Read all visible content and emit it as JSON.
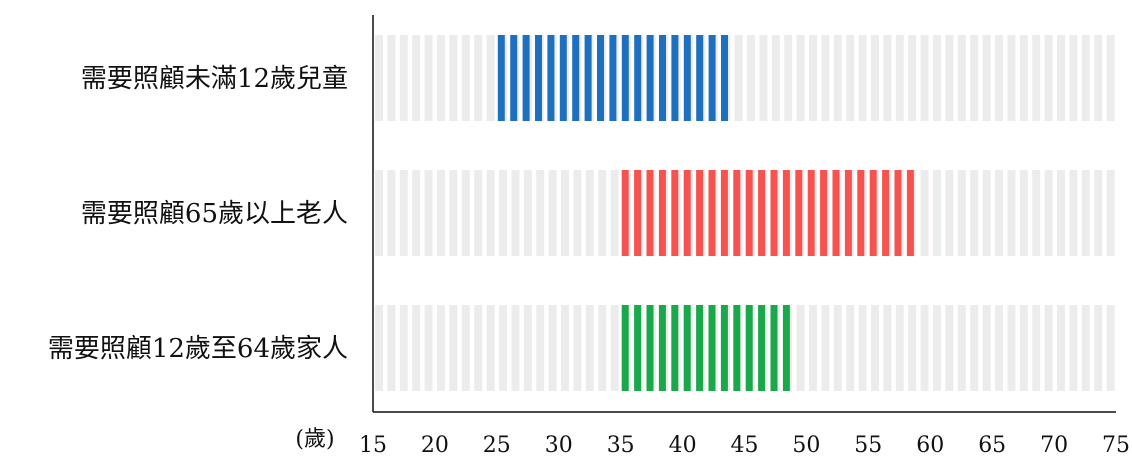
{
  "chart_data": {
    "type": "bar",
    "orientation": "horizontal",
    "style": "striped-range",
    "x_unit_label": "(歲)",
    "xlim": [
      15,
      75
    ],
    "x_ticks": [
      15,
      20,
      25,
      30,
      35,
      40,
      45,
      50,
      55,
      60,
      65,
      70,
      75
    ],
    "categories": [
      "需要照顧未滿12歲兒童",
      "需要照顧65歲以上老人",
      "需要照顧12歲至64歲家人"
    ],
    "ranges": [
      {
        "start": 25,
        "end": 44
      },
      {
        "start": 35,
        "end": 59
      },
      {
        "start": 35,
        "end": 49
      }
    ],
    "colors": [
      "#1f6fbf",
      "#f5534f",
      "#1aa84a"
    ],
    "background_stripe_color": "#ececec",
    "grid": false
  }
}
